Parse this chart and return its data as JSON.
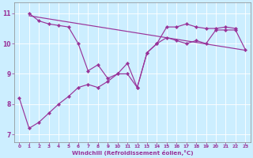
{
  "xlabel": "Windchill (Refroidissement éolien,°C)",
  "bg_color": "#cceeff",
  "line_color": "#993399",
  "x_all": [
    0,
    1,
    2,
    3,
    4,
    5,
    6,
    7,
    8,
    9,
    10,
    11,
    12,
    13,
    14,
    15,
    16,
    17,
    18,
    19,
    20,
    21,
    22,
    23
  ],
  "series_lower": [
    8.2,
    7.2,
    7.4,
    7.7,
    8.0,
    8.25,
    8.55,
    8.65,
    8.55,
    8.75,
    9.0,
    9.35,
    8.55,
    9.7,
    10.0,
    10.2,
    10.1,
    10.0,
    10.1,
    10.0,
    10.45,
    10.45,
    10.45,
    9.8
  ],
  "series_upper_x": [
    1,
    2,
    3,
    4,
    5,
    6,
    7,
    8,
    9,
    10,
    11,
    12,
    13,
    14,
    15,
    16,
    17,
    18,
    19,
    20,
    21,
    22
  ],
  "series_upper_y": [
    11.0,
    10.75,
    10.65,
    10.6,
    10.55,
    10.0,
    9.1,
    9.3,
    8.85,
    9.0,
    9.0,
    8.55,
    9.7,
    10.0,
    10.55,
    10.55,
    10.65,
    10.55,
    10.5,
    10.5,
    10.55,
    10.5
  ],
  "trend_x": [
    1,
    23
  ],
  "trend_y": [
    10.92,
    9.78
  ],
  "ylim": [
    6.75,
    11.35
  ],
  "xlim": [
    -0.5,
    23.5
  ],
  "yticks": [
    7,
    8,
    9,
    10,
    11
  ],
  "xticks": [
    0,
    1,
    2,
    3,
    4,
    5,
    6,
    7,
    8,
    9,
    10,
    11,
    12,
    13,
    14,
    15,
    16,
    17,
    18,
    19,
    20,
    21,
    22,
    23
  ]
}
